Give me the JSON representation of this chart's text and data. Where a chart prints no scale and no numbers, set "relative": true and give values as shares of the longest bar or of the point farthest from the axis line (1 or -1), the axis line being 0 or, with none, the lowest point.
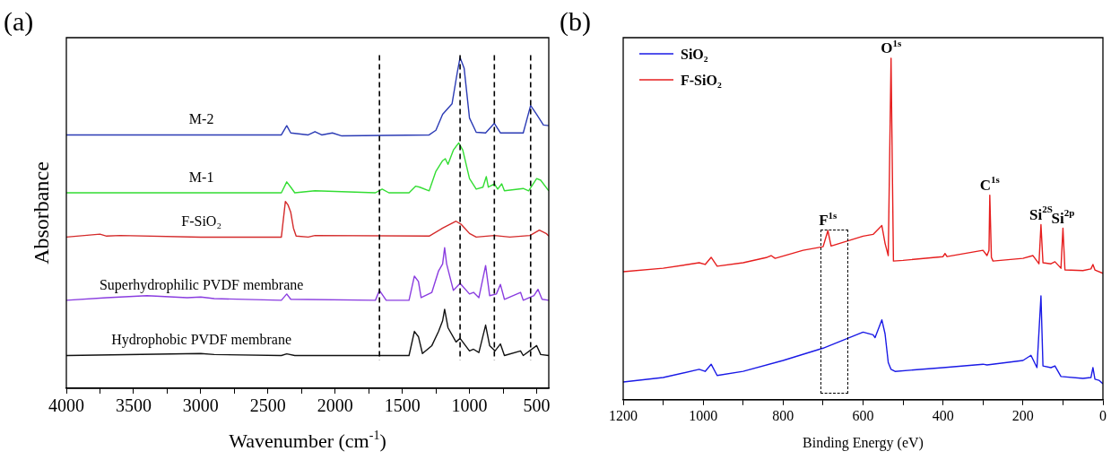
{
  "chart_data": [
    {
      "type": "line",
      "title": "(a)",
      "xlabel": "Wavenumber (cm$^{-1}$)",
      "ylabel": "Absorbance",
      "relative": true,
      "legend": false,
      "grid": false,
      "marker": "none",
      "xlim": [
        4000,
        410
      ],
      "xticks": [
        4000,
        {
          "value": 3750,
          "label": null
        },
        3500,
        {
          "value": 3250,
          "label": null
        },
        3000,
        {
          "value": 2750,
          "label": null
        },
        2500,
        {
          "value": 2250,
          "label": null
        },
        2000,
        {
          "value": 1750,
          "label": null
        },
        1500,
        {
          "value": 1250,
          "label": null
        },
        1000,
        {
          "value": 750,
          "label": null
        },
        500
      ],
      "ref_lines": [
        {
          "axis": "x",
          "value": 1670,
          "line_style": "dashed"
        },
        {
          "axis": "x",
          "value": 1070,
          "line_style": "dashed"
        },
        {
          "axis": "x",
          "value": 815,
          "line_style": "dashed"
        },
        {
          "axis": "x",
          "value": 545,
          "line_style": "dashed"
        }
      ],
      "series": [
        {
          "name": "M-2",
          "color": "#2b3bb5",
          "x": [
            4000,
            2400,
            2360,
            2330,
            2200,
            2150,
            2100,
            2020,
            1950,
            1300,
            1250,
            1200,
            1130,
            1090,
            1070,
            1040,
            1000,
            950,
            880,
            815,
            770,
            600,
            545,
            500,
            450,
            410
          ],
          "values": [
            0.766,
            0.766,
            0.794,
            0.772,
            0.766,
            0.776,
            0.766,
            0.772,
            0.763,
            0.766,
            0.78,
            0.828,
            0.86,
            0.957,
            1.0,
            0.968,
            0.817,
            0.774,
            0.772,
            0.801,
            0.772,
            0.772,
            0.855,
            0.828,
            0.796,
            0.794
          ]
        },
        {
          "name": "M-1",
          "color": "#33dd33",
          "x": [
            4000,
            2400,
            2360,
            2330,
            2300,
            2150,
            1700,
            1650,
            1600,
            1450,
            1400,
            1370,
            1300,
            1250,
            1200,
            1180,
            1160,
            1120,
            1080,
            1050,
            1000,
            950,
            900,
            875,
            860,
            815,
            790,
            760,
            740,
            600,
            560,
            500,
            470,
            410
          ],
          "values": [
            0.591,
            0.591,
            0.624,
            0.608,
            0.591,
            0.597,
            0.591,
            0.602,
            0.591,
            0.591,
            0.611,
            0.608,
            0.597,
            0.656,
            0.688,
            0.694,
            0.677,
            0.72,
            0.742,
            0.72,
            0.634,
            0.602,
            0.608,
            0.64,
            0.608,
            0.618,
            0.602,
            0.618,
            0.597,
            0.604,
            0.597,
            0.634,
            0.629,
            0.597
          ]
        },
        {
          "name": "F-SiO₂",
          "color": "#d42a2a",
          "x": [
            4000,
            3750,
            3700,
            3600,
            3000,
            2400,
            2370,
            2350,
            2330,
            2310,
            2290,
            2200,
            2150,
            1300,
            1200,
            1100,
            1060,
            1000,
            950,
            815,
            700,
            550,
            480,
            430,
            410
          ],
          "values": [
            0.457,
            0.466,
            0.46,
            0.462,
            0.457,
            0.457,
            0.565,
            0.554,
            0.532,
            0.484,
            0.46,
            0.457,
            0.462,
            0.46,
            0.484,
            0.505,
            0.495,
            0.468,
            0.457,
            0.462,
            0.457,
            0.462,
            0.478,
            0.468,
            0.46
          ]
        },
        {
          "name": "Superhydrophilic PVDF membrane",
          "color": "#8a3de0",
          "x": [
            4000,
            3700,
            3400,
            3100,
            3000,
            2900,
            2400,
            2360,
            2330,
            1700,
            1670,
            1620,
            1450,
            1410,
            1380,
            1360,
            1280,
            1230,
            1200,
            1185,
            1170,
            1120,
            1070,
            1000,
            970,
            930,
            880,
            850,
            800,
            770,
            740,
            620,
            600,
            520,
            490,
            460,
            410
          ],
          "values": [
            0.266,
            0.274,
            0.28,
            0.274,
            0.276,
            0.271,
            0.266,
            0.285,
            0.269,
            0.266,
            0.296,
            0.266,
            0.266,
            0.339,
            0.323,
            0.274,
            0.29,
            0.355,
            0.376,
            0.425,
            0.376,
            0.296,
            0.317,
            0.285,
            0.29,
            0.274,
            0.371,
            0.28,
            0.285,
            0.314,
            0.269,
            0.29,
            0.266,
            0.28,
            0.299,
            0.269,
            0.266
          ]
        },
        {
          "name": "Hydrophobic PVDF membrane",
          "color": "#111111",
          "x": [
            4000,
            3000,
            2900,
            2400,
            2360,
            2300,
            1450,
            1410,
            1380,
            1350,
            1280,
            1230,
            1200,
            1185,
            1160,
            1100,
            1070,
            1000,
            970,
            930,
            880,
            850,
            810,
            770,
            740,
            620,
            600,
            500,
            470,
            410
          ],
          "values": [
            0.099,
            0.105,
            0.102,
            0.099,
            0.104,
            0.099,
            0.099,
            0.172,
            0.156,
            0.105,
            0.129,
            0.172,
            0.204,
            0.239,
            0.183,
            0.14,
            0.151,
            0.113,
            0.118,
            0.108,
            0.191,
            0.129,
            0.113,
            0.134,
            0.099,
            0.113,
            0.099,
            0.129,
            0.102,
            0.099
          ]
        }
      ]
    },
    {
      "type": "line",
      "title": "(b)",
      "xlabel": "Binding Energy (eV)",
      "relative": true,
      "legend": "top left",
      "grid": false,
      "marker": "none",
      "xlim": [
        1200,
        0
      ],
      "xticks": [
        1200,
        {
          "value": 1100,
          "label": null
        },
        1000,
        {
          "value": 900,
          "label": null
        },
        800,
        {
          "value": 700,
          "label": null
        },
        600,
        {
          "value": 500,
          "label": null
        },
        400,
        {
          "value": 300,
          "label": null
        },
        200,
        {
          "value": 100,
          "label": null
        },
        0
      ],
      "annotations": [
        {
          "text": "O$^{1s}$",
          "x": 530,
          "y": 1.0
        },
        {
          "text": "C$^{1s}$",
          "x": 283,
          "y": 0.599
        },
        {
          "text": "F$^{1s}$",
          "x": 688,
          "y": 0.495
        },
        {
          "text": "Si$^{2S}$",
          "x": 155,
          "y": 0.5125
        },
        {
          "text": "Si$^{2p}$",
          "x": 100,
          "y": 0.502
        }
      ],
      "series": [
        {
          "name": "SiO₂",
          "color": "#1a1ae6",
          "x": [
            1200,
            1100,
            1010,
            995,
            980,
            965,
            900,
            800,
            700,
            600,
            575,
            570,
            553,
            545,
            537,
            530,
            520,
            400,
            300,
            290,
            200,
            180,
            165,
            155,
            150,
            130,
            120,
            105,
            50,
            30,
            25,
            20,
            10,
            0
          ],
          "values": [
            0.052,
            0.065,
            0.089,
            0.083,
            0.104,
            0.071,
            0.083,
            0.115,
            0.151,
            0.198,
            0.19,
            0.182,
            0.234,
            0.193,
            0.109,
            0.089,
            0.083,
            0.094,
            0.104,
            0.102,
            0.115,
            0.13,
            0.094,
            0.304,
            0.099,
            0.094,
            0.099,
            0.068,
            0.0625,
            0.065,
            0.094,
            0.06,
            0.057,
            0.047
          ]
        },
        {
          "name": "F-SiO₂",
          "color": "#e61e1e",
          "x": [
            1200,
            1100,
            1010,
            995,
            980,
            965,
            900,
            840,
            830,
            820,
            750,
            700,
            688,
            680,
            600,
            575,
            553,
            545,
            537,
            533,
            530,
            527,
            524,
            500,
            400,
            395,
            390,
            300,
            290,
            285,
            283,
            279,
            275,
            200,
            175,
            160,
            155,
            150,
            130,
            120,
            105,
            100,
            95,
            50,
            30,
            25,
            20,
            0
          ],
          "values": [
            0.375,
            0.385,
            0.401,
            0.396,
            0.417,
            0.391,
            0.401,
            0.417,
            0.422,
            0.414,
            0.4375,
            0.448,
            0.495,
            0.45,
            0.479,
            0.484,
            0.51,
            0.458,
            0.422,
            0.75,
            1.0,
            0.698,
            0.406,
            0.408,
            0.419,
            0.428,
            0.419,
            0.4375,
            0.422,
            0.4375,
            0.599,
            0.417,
            0.406,
            0.414,
            0.422,
            0.398,
            0.5125,
            0.401,
            0.398,
            0.404,
            0.385,
            0.502,
            0.38,
            0.378,
            0.383,
            0.396,
            0.38,
            0.37
          ]
        }
      ]
    }
  ]
}
